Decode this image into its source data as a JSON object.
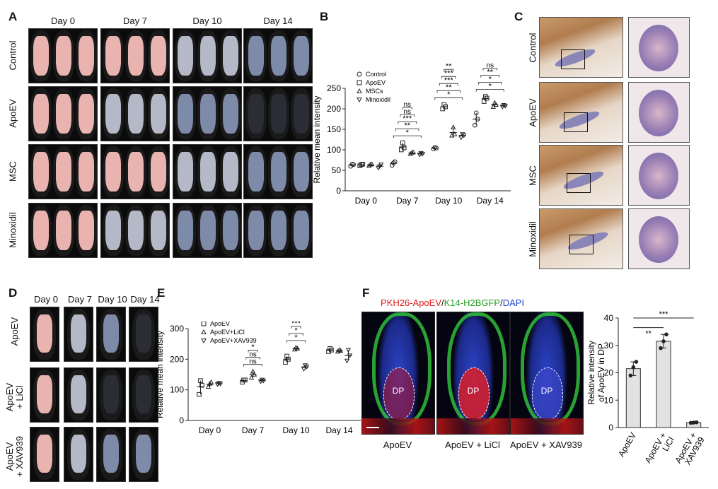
{
  "panels": {
    "A": "A",
    "B": "B",
    "C": "C",
    "D": "D",
    "E": "E",
    "F": "F"
  },
  "panelA": {
    "days": [
      "Day 0",
      "Day 7",
      "Day 10",
      "Day 14"
    ],
    "rows": [
      "Control",
      "ApoEV",
      "MSC",
      "Minoxidil"
    ],
    "colors": {
      "pink": "#e9b3b0",
      "grey": "#b5b8c6",
      "blue": "#7d8aa8",
      "dark": "#2a2d35"
    },
    "grid": [
      [
        "pink",
        "pink",
        "grey",
        "blue"
      ],
      [
        "pink",
        "grey",
        "blue",
        "dark"
      ],
      [
        "pink",
        "pink",
        "grey",
        "blue"
      ],
      [
        "pink",
        "grey",
        "blue",
        "blue"
      ]
    ]
  },
  "panelC": {
    "rows": [
      "Control",
      "ApoEV",
      "MSC",
      "Minoxidil"
    ]
  },
  "panelD": {
    "days": [
      "Day 0",
      "Day 7",
      "Day 10",
      "Day 14"
    ],
    "rows": [
      "ApoEV",
      "ApoEV\n+ LiCl",
      "ApoEV\n+ XAV939"
    ],
    "grid": [
      [
        "pink",
        "grey",
        "blue",
        "dark"
      ],
      [
        "pink",
        "grey",
        "dark",
        "dark"
      ],
      [
        "pink",
        "grey",
        "blue",
        "blue"
      ]
    ]
  },
  "panelF": {
    "title_parts": [
      {
        "text": "PKH26-ApoEV",
        "color": "#e01818"
      },
      {
        "text": "/",
        "color": "#111111"
      },
      {
        "text": "K14-H2BGFP",
        "color": "#22a022"
      },
      {
        "text": "/",
        "color": "#111111"
      },
      {
        "text": "DAPI",
        "color": "#1f3fd0"
      }
    ],
    "captions": [
      "ApoEV",
      "ApoEV + LiCl",
      "ApoEV + XAV939"
    ],
    "dp_label": "DP"
  },
  "chart_data": [
    {
      "id": "B",
      "type": "scatter",
      "ylabel": "Relative mean intensity",
      "ylim": [
        0,
        250
      ],
      "yticks": [
        0,
        50,
        100,
        150,
        200,
        250
      ],
      "categories": [
        "Day 0",
        "Day 7",
        "Day 10",
        "Day 14"
      ],
      "series": [
        {
          "name": "Control",
          "marker": "circle",
          "mean": [
            63,
            67,
            104,
            175
          ],
          "points": [
            [
              60,
              65,
              64
            ],
            [
              62,
              68,
              71
            ],
            [
              102,
              106,
              104
            ],
            [
              160,
              190,
              175
            ]
          ]
        },
        {
          "name": "ApoEV",
          "marker": "square",
          "mean": [
            63,
            107,
            205,
            225
          ],
          "points": [
            [
              61,
              64,
              65
            ],
            [
              100,
              117,
              105
            ],
            [
              200,
              210,
              205
            ],
            [
              218,
              230,
              226
            ]
          ]
        },
        {
          "name": "MSCs",
          "marker": "triangle",
          "mean": [
            63,
            92,
            142,
            210
          ],
          "points": [
            [
              61,
              64,
              65
            ],
            [
              90,
              93,
              94
            ],
            [
              135,
              155,
              138
            ],
            [
              205,
              215,
              210
            ]
          ]
        },
        {
          "name": "Minoxidil",
          "marker": "triangle-down",
          "mean": [
            60,
            90,
            135,
            207
          ],
          "points": [
            [
              56,
              60,
              64
            ],
            [
              88,
              92,
              90
            ],
            [
              130,
              138,
              135
            ],
            [
              205,
              209,
              207
            ]
          ]
        }
      ],
      "annotations": [
        {
          "group": "Day 7",
          "labels": [
            "*",
            "**",
            "***",
            "ns",
            "ns"
          ]
        },
        {
          "group": "Day 10",
          "labels": [
            "*",
            "**",
            "***",
            "***",
            "**"
          ]
        },
        {
          "group": "Day 14",
          "labels": [
            "*",
            "*",
            "**",
            "ns",
            "ns"
          ]
        }
      ]
    },
    {
      "id": "E",
      "type": "scatter",
      "ylabel": "Relative mean intensity",
      "ylim": [
        0,
        300
      ],
      "yticks": [
        0,
        100,
        200,
        300
      ],
      "categories": [
        "Day 0",
        "Day 7",
        "Day 10",
        "Day 14"
      ],
      "series": [
        {
          "name": "ApoEV",
          "marker": "square",
          "mean": [
            110,
            130,
            200,
            230
          ],
          "points": [
            [
              85,
              130,
              115
            ],
            [
              125,
              132,
              132
            ],
            [
              190,
              210,
              200
            ],
            [
              225,
              235,
              230
            ]
          ]
        },
        {
          "name": "ApoEV+LiCl",
          "marker": "triangle",
          "mean": [
            118,
            150,
            235,
            228
          ],
          "points": [
            [
              110,
              120,
              125
            ],
            [
              140,
              160,
              150
            ],
            [
              232,
              238,
              235
            ],
            [
              225,
              230,
              228
            ]
          ]
        },
        {
          "name": "ApoEV+XAV939",
          "marker": "triangle-down",
          "mean": [
            120,
            130,
            175,
            212
          ],
          "points": [
            [
              118,
              122,
              120
            ],
            [
              127,
              133,
              130
            ],
            [
              168,
              180,
              175
            ],
            [
              195,
              230,
              212
            ]
          ]
        }
      ],
      "annotations": [
        {
          "group": "Day 7",
          "labels": [
            "ns",
            "ns",
            "*"
          ]
        },
        {
          "group": "Day 10",
          "labels": [
            "*",
            "*",
            "***"
          ]
        }
      ]
    },
    {
      "id": "F",
      "type": "bar",
      "ylabel": "Relative intensity\nof ApoEV in DP",
      "ylim": [
        0,
        40
      ],
      "yticks": [
        0,
        10,
        20,
        30,
        40
      ],
      "categories": [
        "ApoEV",
        "ApoEV +\nLiCl",
        "ApoEV +\nXAV939"
      ],
      "values": [
        21.5,
        31.5,
        1.8
      ],
      "points": [
        [
          19,
          22,
          24
        ],
        [
          29,
          31.5,
          34
        ],
        [
          1.7,
          1.8,
          1.9
        ]
      ],
      "annotations": [
        "**",
        "***"
      ]
    }
  ]
}
